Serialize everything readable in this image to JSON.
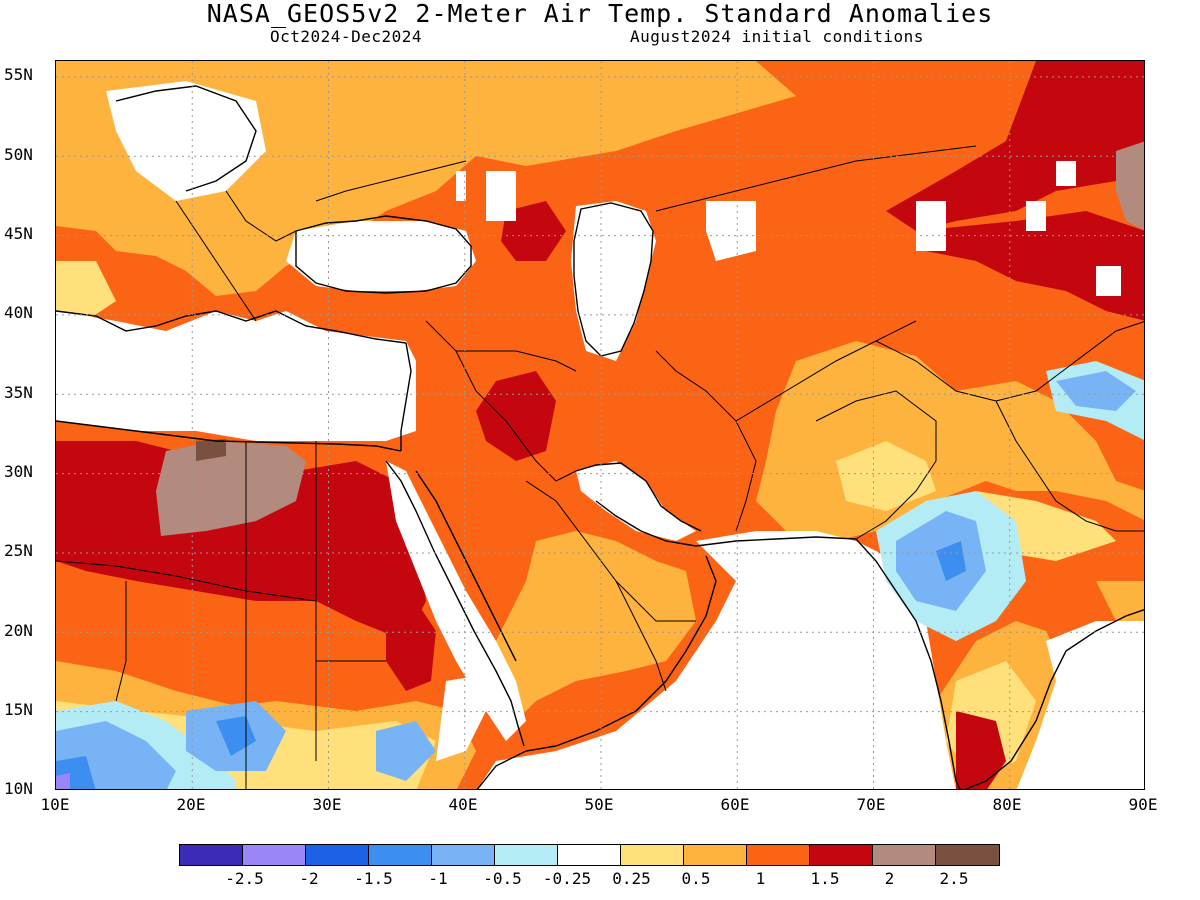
{
  "title": "NASA_GEOS5v2 2-Meter Air Temp. Standard Anomalies",
  "subtitle_left": "Oct2024-Dec2024",
  "subtitle_right": "August2024 initial conditions",
  "lat_labels": [
    "55N",
    "50N",
    "45N",
    "40N",
    "35N",
    "30N",
    "25N",
    "20N",
    "15N",
    "10N"
  ],
  "lon_labels": [
    "10E",
    "20E",
    "30E",
    "40E",
    "50E",
    "60E",
    "70E",
    "80E",
    "90E"
  ],
  "colorbar": {
    "colors": [
      "#3a2bb8",
      "#9b86f5",
      "#1c61e6",
      "#3c8ff0",
      "#78b4f5",
      "#b3ecf5",
      "#ffffff",
      "#ffe07a",
      "#fdb33e",
      "#fb6414",
      "#c4070f",
      "#b38b7e",
      "#7a5040"
    ],
    "labels": [
      "-2.5",
      "-2",
      "-1.5",
      "-1",
      "-0.5",
      "-0.25",
      "0.25",
      "0.5",
      "1",
      "1.5",
      "2",
      "2.5"
    ]
  },
  "palette": {
    "white": "#ffffff",
    "yellow": "#ffe07a",
    "lightorange": "#fdb33e",
    "orange": "#fb6414",
    "red": "#c4070f",
    "tan": "#b38b7e",
    "brown": "#7a5040",
    "cyan": "#b3ecf5",
    "lightblue": "#78b4f5",
    "blue": "#3c8ff0",
    "purple": "#9b86f5"
  }
}
